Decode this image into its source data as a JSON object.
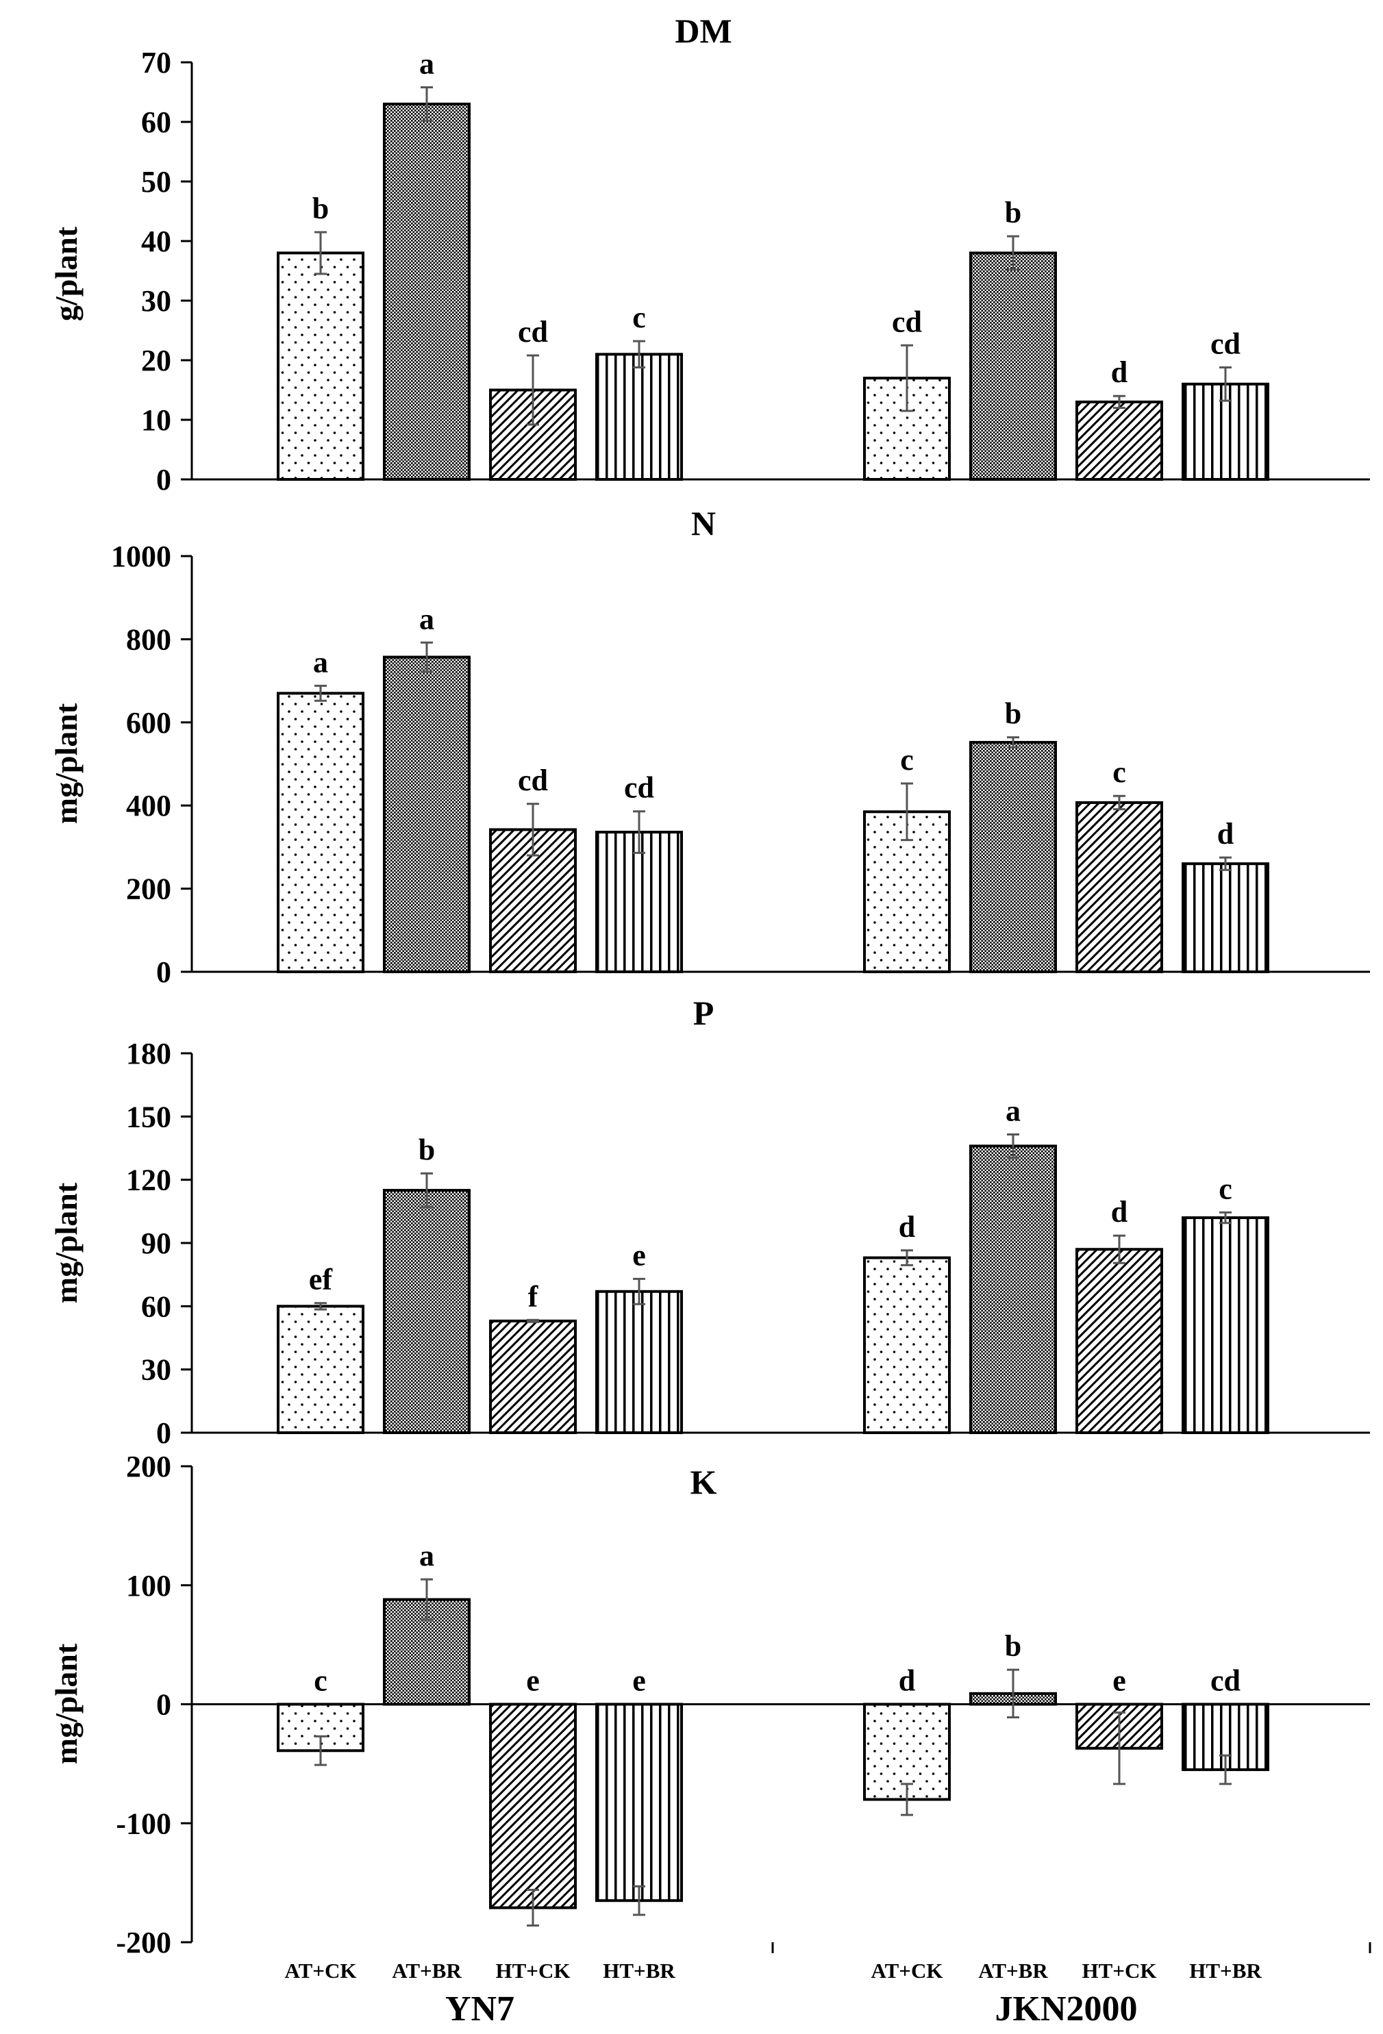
{
  "chart_data": [
    {
      "type": "bar",
      "title": "DM",
      "ylabel": "g/plant",
      "ylim": [
        0,
        70
      ],
      "yticks": [
        0,
        10,
        20,
        30,
        40,
        50,
        60,
        70
      ],
      "groups": [
        "YN7",
        "JKN2000"
      ],
      "categories": [
        "AT+CK",
        "AT+BR",
        "HT+CK",
        "HT+BR"
      ],
      "series": [
        {
          "group": "YN7",
          "values": [
            38,
            63,
            15,
            21
          ],
          "errors": [
            3.5,
            2.8,
            5.8,
            2.2
          ],
          "letters": [
            "b",
            "a",
            "cd",
            "c"
          ]
        },
        {
          "group": "JKN2000",
          "values": [
            17,
            38,
            13,
            16
          ],
          "errors": [
            5.5,
            2.8,
            1.0,
            2.8
          ],
          "letters": [
            "cd",
            "b",
            "d",
            "cd"
          ]
        }
      ]
    },
    {
      "type": "bar",
      "title": "N",
      "ylabel": "mg/plant",
      "ylim": [
        0,
        1000
      ],
      "yticks": [
        0,
        200,
        400,
        600,
        800,
        1000
      ],
      "groups": [
        "YN7",
        "JKN2000"
      ],
      "categories": [
        "AT+CK",
        "AT+BR",
        "HT+CK",
        "HT+BR"
      ],
      "series": [
        {
          "group": "YN7",
          "values": [
            670,
            757,
            342,
            336
          ],
          "errors": [
            18,
            35,
            62,
            50
          ],
          "letters": [
            "a",
            "a",
            "cd",
            "cd"
          ]
        },
        {
          "group": "JKN2000",
          "values": [
            385,
            552,
            407,
            260
          ],
          "errors": [
            68,
            12,
            16,
            15
          ],
          "letters": [
            "c",
            "b",
            "c",
            "d"
          ]
        }
      ]
    },
    {
      "type": "bar",
      "title": "P",
      "ylabel": "mg/plant",
      "ylim": [
        0,
        180
      ],
      "yticks": [
        0,
        30,
        60,
        90,
        120,
        150,
        180
      ],
      "groups": [
        "YN7",
        "JKN2000"
      ],
      "categories": [
        "AT+CK",
        "AT+BR",
        "HT+CK",
        "HT+BR"
      ],
      "series": [
        {
          "group": "YN7",
          "values": [
            60,
            115,
            53,
            67
          ],
          "errors": [
            1.5,
            8,
            0.5,
            6
          ],
          "letters": [
            "ef",
            "b",
            "f",
            "e"
          ]
        },
        {
          "group": "JKN2000",
          "values": [
            83,
            136,
            87,
            102
          ],
          "errors": [
            3.5,
            5.5,
            6.5,
            2.5
          ],
          "letters": [
            "d",
            "a",
            "d",
            "c"
          ]
        }
      ]
    },
    {
      "type": "bar",
      "title": "K",
      "ylabel": "mg/plant",
      "ylim": [
        -200,
        200
      ],
      "yticks": [
        -200,
        -100,
        0,
        100,
        200
      ],
      "groups": [
        "YN7",
        "JKN2000"
      ],
      "categories": [
        "AT+CK",
        "AT+BR",
        "HT+CK",
        "HT+BR"
      ],
      "series": [
        {
          "group": "YN7",
          "values": [
            -39,
            88,
            -171,
            -165
          ],
          "errors": [
            12,
            17,
            15,
            12
          ],
          "letters": [
            "c",
            "a",
            "e",
            "e"
          ]
        },
        {
          "group": "JKN2000",
          "values": [
            -80,
            9,
            -37,
            -55
          ],
          "errors": [
            13,
            20,
            30,
            12
          ],
          "letters": [
            "d",
            "b",
            "e",
            "cd"
          ]
        }
      ]
    }
  ]
}
